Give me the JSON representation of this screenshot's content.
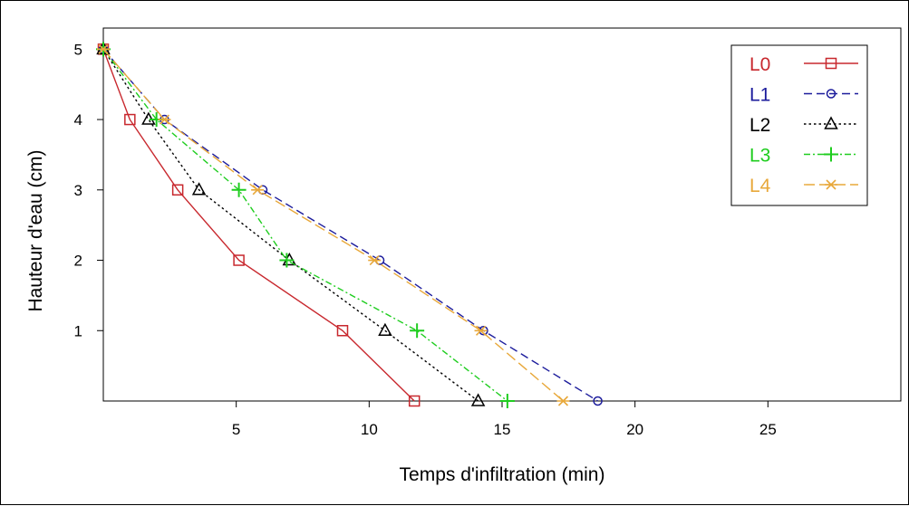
{
  "chart_data": {
    "type": "line",
    "xlabel": "Temps d'infiltration (min)",
    "ylabel": "Hauteur d'eau (cm)",
    "xlim": [
      0,
      30
    ],
    "ylim": [
      0,
      5.3
    ],
    "xticks": [
      5,
      10,
      15,
      20,
      25
    ],
    "yticks": [
      1,
      2,
      3,
      4,
      5
    ],
    "grid": false,
    "legend_position": "top-right",
    "series": [
      {
        "name": "L0",
        "color": "#c8282e",
        "dash": "solid",
        "marker": "square",
        "points": [
          [
            0,
            5
          ],
          [
            1.0,
            4
          ],
          [
            2.8,
            3
          ],
          [
            5.1,
            2
          ],
          [
            9.0,
            1
          ],
          [
            11.7,
            0
          ]
        ]
      },
      {
        "name": "L1",
        "color": "#1c1c9c",
        "dash": "dashed",
        "marker": "circle",
        "points": [
          [
            0,
            5
          ],
          [
            2.3,
            4
          ],
          [
            6.0,
            3
          ],
          [
            10.4,
            2
          ],
          [
            14.3,
            1
          ],
          [
            18.6,
            0
          ]
        ]
      },
      {
        "name": "L2",
        "color": "#000000",
        "dash": "dotted",
        "marker": "triangle",
        "points": [
          [
            0,
            5
          ],
          [
            1.7,
            4
          ],
          [
            3.6,
            3
          ],
          [
            7.0,
            2
          ],
          [
            10.6,
            1
          ],
          [
            14.1,
            0
          ]
        ]
      },
      {
        "name": "L3",
        "color": "#1fcd1f",
        "dash": "dashdot",
        "marker": "plus",
        "points": [
          [
            0,
            5
          ],
          [
            2.0,
            4
          ],
          [
            5.1,
            3
          ],
          [
            6.9,
            2
          ],
          [
            11.8,
            1
          ],
          [
            15.2,
            0
          ]
        ]
      },
      {
        "name": "L4",
        "color": "#e8a83a",
        "dash": "longdash",
        "marker": "asterisk",
        "points": [
          [
            0,
            5
          ],
          [
            2.3,
            4
          ],
          [
            5.8,
            3
          ],
          [
            10.2,
            2
          ],
          [
            14.2,
            1
          ],
          [
            17.3,
            0
          ]
        ]
      }
    ]
  }
}
